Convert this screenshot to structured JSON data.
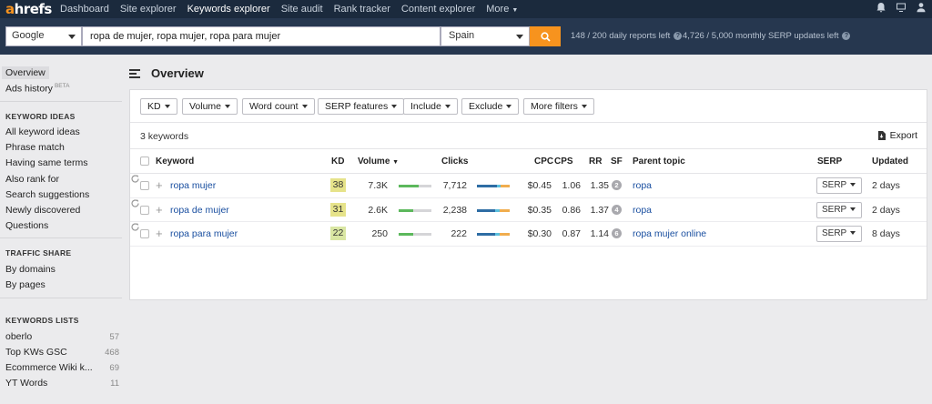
{
  "nav": {
    "logo": "ahrefs",
    "items": [
      "Dashboard",
      "Site explorer",
      "Keywords explorer",
      "Site audit",
      "Rank tracker",
      "Content explorer",
      "More"
    ],
    "active_index": 2,
    "icons": [
      "bell-icon",
      "monitor-icon",
      "user-icon"
    ]
  },
  "search": {
    "engine": "Google",
    "query": "ropa de mujer, ropa mujer, ropa para mujer",
    "country": "Spain",
    "quota_reports": "148 / 200 daily reports left",
    "quota_serp": "4,726 / 5,000 monthly SERP updates left"
  },
  "sidebar": {
    "top": [
      {
        "label": "Overview",
        "active": true
      },
      {
        "label": "Ads history",
        "badge": "BETA"
      }
    ],
    "keyword_ideas": {
      "title": "KEYWORD IDEAS",
      "items": [
        "All keyword ideas",
        "Phrase match",
        "Having same terms",
        "Also rank for",
        "Search suggestions",
        "Newly discovered",
        "Questions"
      ]
    },
    "traffic_share": {
      "title": "TRAFFIC SHARE",
      "items": [
        "By domains",
        "By pages"
      ]
    },
    "keywords_lists": {
      "title": "KEYWORDS LISTS",
      "items": [
        {
          "label": "oberlo",
          "count": "57"
        },
        {
          "label": "Top KWs GSC",
          "count": "468"
        },
        {
          "label": "Ecommerce Wiki k...",
          "count": "69"
        },
        {
          "label": "YT Words",
          "count": "11"
        }
      ]
    }
  },
  "main": {
    "title": "Overview",
    "filters": [
      "KD",
      "Volume",
      "Word count",
      "SERP features",
      "Include",
      "Exclude",
      "More filters"
    ],
    "count_text": "3 keywords",
    "export_label": "Export",
    "columns": [
      "Keyword",
      "KD",
      "Volume",
      "Clicks",
      "CPC",
      "CPS",
      "RR",
      "SF",
      "Parent topic",
      "SERP",
      "Updated"
    ],
    "rows": [
      {
        "keyword": "ropa mujer",
        "kd": "38",
        "volume": "7.3K",
        "volume_bar": 0.62,
        "clicks": "7,712",
        "clicks_split": [
          0.6,
          0.12,
          0.28
        ],
        "cpc": "$0.45",
        "cps": "1.06",
        "rr": "1.35",
        "sf": "2",
        "parent_topic": "ropa",
        "serp": "SERP",
        "updated": "2 days"
      },
      {
        "keyword": "ropa de mujer",
        "kd": "31",
        "volume": "2.6K",
        "volume_bar": 0.45,
        "clicks": "2,238",
        "clicks_split": [
          0.55,
          0.15,
          0.3
        ],
        "cpc": "$0.35",
        "cps": "0.86",
        "rr": "1.37",
        "sf": "4",
        "parent_topic": "ropa",
        "serp": "SERP",
        "updated": "2 days"
      },
      {
        "keyword": "ropa para mujer",
        "kd": "22",
        "volume": "250",
        "volume_bar": 0.45,
        "clicks": "222",
        "clicks_split": [
          0.55,
          0.15,
          0.3
        ],
        "cpc": "$0.30",
        "cps": "0.87",
        "rr": "1.14",
        "sf": "6",
        "parent_topic": "ropa mujer online",
        "serp": "SERP",
        "updated": "8 days"
      }
    ]
  },
  "colors": {
    "nav_bg": "#1b2a3d",
    "search_bg": "#26374f",
    "accent": "#f7931e",
    "link": "#1a4fa0",
    "kd_yellow": "#e6e38a",
    "kd_green": "#d9e6a3",
    "volume_bar": "#5cb85c",
    "clicks_blue": "#2e6da4",
    "clicks_teal": "#5bc0de",
    "clicks_orange": "#f0ad4e"
  }
}
